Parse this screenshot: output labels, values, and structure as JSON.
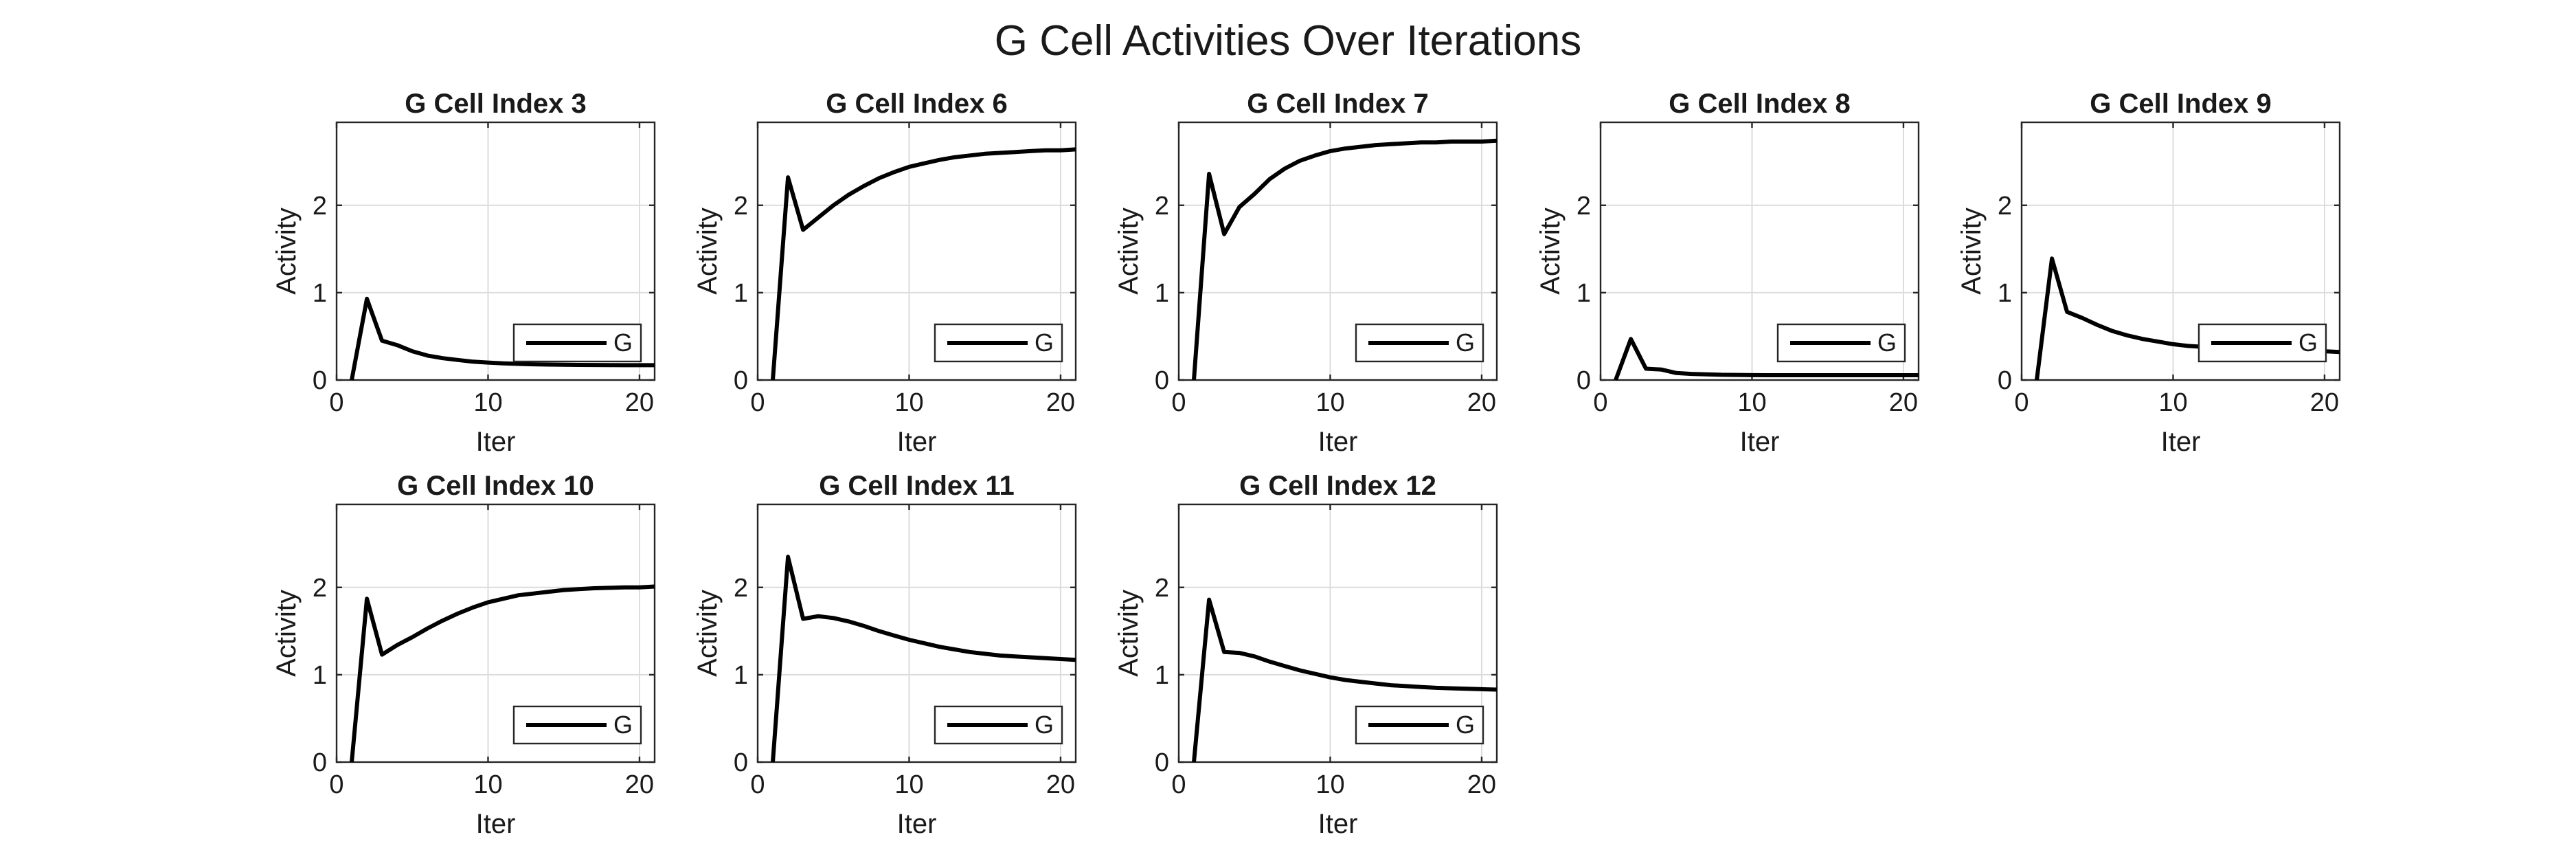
{
  "figure": {
    "title": "G Cell Activities Over Iterations"
  },
  "chart_data": [
    {
      "type": "line",
      "title": "G Cell Index 3",
      "xlabel": "Iter",
      "ylabel": "Activity",
      "xlim": [
        0,
        21
      ],
      "ylim": [
        0,
        2.95
      ],
      "xticks": [
        "0",
        "10",
        "20"
      ],
      "yticks": [
        "0",
        "1",
        "2"
      ],
      "grid": true,
      "legend": "bottom-right",
      "series": [
        {
          "name": "G",
          "x": [
            1,
            2,
            3,
            4,
            5,
            6,
            7,
            8,
            9,
            10,
            11,
            12,
            13,
            14,
            15,
            16,
            17,
            18,
            19,
            20,
            21
          ],
          "y": [
            0,
            0.93,
            0.45,
            0.4,
            0.33,
            0.28,
            0.25,
            0.23,
            0.21,
            0.2,
            0.19,
            0.185,
            0.18,
            0.177,
            0.175,
            0.173,
            0.172,
            0.171,
            0.17,
            0.17,
            0.17
          ]
        }
      ]
    },
    {
      "type": "line",
      "title": "G Cell Index 6",
      "xlabel": "Iter",
      "ylabel": "Activity",
      "xlim": [
        0,
        21
      ],
      "ylim": [
        0,
        2.95
      ],
      "xticks": [
        "0",
        "10",
        "20"
      ],
      "yticks": [
        "0",
        "1",
        "2"
      ],
      "grid": true,
      "legend": "bottom-right",
      "series": [
        {
          "name": "G",
          "x": [
            1,
            2,
            3,
            4,
            5,
            6,
            7,
            8,
            9,
            10,
            11,
            12,
            13,
            14,
            15,
            16,
            17,
            18,
            19,
            20,
            21
          ],
          "y": [
            0,
            2.32,
            1.72,
            1.86,
            2.0,
            2.12,
            2.22,
            2.31,
            2.38,
            2.44,
            2.48,
            2.52,
            2.55,
            2.57,
            2.59,
            2.6,
            2.61,
            2.62,
            2.63,
            2.63,
            2.64
          ]
        }
      ]
    },
    {
      "type": "line",
      "title": "G Cell Index 7",
      "xlabel": "Iter",
      "ylabel": "Activity",
      "xlim": [
        0,
        21
      ],
      "ylim": [
        0,
        2.95
      ],
      "xticks": [
        "0",
        "10",
        "20"
      ],
      "yticks": [
        "0",
        "1",
        "2"
      ],
      "grid": true,
      "legend": "bottom-right",
      "series": [
        {
          "name": "G",
          "x": [
            1,
            2,
            3,
            4,
            5,
            6,
            7,
            8,
            9,
            10,
            11,
            12,
            13,
            14,
            15,
            16,
            17,
            18,
            19,
            20,
            21
          ],
          "y": [
            0,
            2.36,
            1.67,
            1.98,
            2.13,
            2.3,
            2.42,
            2.51,
            2.57,
            2.62,
            2.65,
            2.67,
            2.69,
            2.7,
            2.71,
            2.72,
            2.72,
            2.73,
            2.73,
            2.73,
            2.74
          ]
        }
      ]
    },
    {
      "type": "line",
      "title": "G Cell Index 8",
      "xlabel": "Iter",
      "ylabel": "Activity",
      "xlim": [
        0,
        21
      ],
      "ylim": [
        0,
        2.95
      ],
      "xticks": [
        "0",
        "10",
        "20"
      ],
      "yticks": [
        "0",
        "1",
        "2"
      ],
      "grid": true,
      "legend": "bottom-right",
      "series": [
        {
          "name": "G",
          "x": [
            1,
            2,
            3,
            4,
            5,
            6,
            7,
            8,
            9,
            10,
            11,
            12,
            13,
            14,
            15,
            16,
            17,
            18,
            19,
            20,
            21
          ],
          "y": [
            0,
            0.47,
            0.13,
            0.12,
            0.08,
            0.07,
            0.065,
            0.06,
            0.058,
            0.056,
            0.055,
            0.055,
            0.055,
            0.055,
            0.055,
            0.055,
            0.055,
            0.055,
            0.055,
            0.055,
            0.055
          ]
        }
      ]
    },
    {
      "type": "line",
      "title": "G Cell Index 9",
      "xlabel": "Iter",
      "ylabel": "Activity",
      "xlim": [
        0,
        21
      ],
      "ylim": [
        0,
        2.95
      ],
      "xticks": [
        "0",
        "10",
        "20"
      ],
      "yticks": [
        "0",
        "1",
        "2"
      ],
      "grid": true,
      "legend": "bottom-right",
      "series": [
        {
          "name": "G",
          "x": [
            1,
            2,
            3,
            4,
            5,
            6,
            7,
            8,
            9,
            10,
            11,
            12,
            13,
            14,
            15,
            16,
            17,
            18,
            19,
            20,
            21
          ],
          "y": [
            0,
            1.39,
            0.78,
            0.71,
            0.63,
            0.56,
            0.51,
            0.47,
            0.44,
            0.41,
            0.39,
            0.38,
            0.37,
            0.36,
            0.35,
            0.34,
            0.34,
            0.33,
            0.33,
            0.33,
            0.32
          ]
        }
      ]
    },
    {
      "type": "line",
      "title": "G Cell Index 10",
      "xlabel": "Iter",
      "ylabel": "Activity",
      "xlim": [
        0,
        21
      ],
      "ylim": [
        0,
        2.95
      ],
      "xticks": [
        "0",
        "10",
        "20"
      ],
      "yticks": [
        "0",
        "1",
        "2"
      ],
      "grid": true,
      "legend": "bottom-right",
      "series": [
        {
          "name": "G",
          "x": [
            1,
            2,
            3,
            4,
            5,
            6,
            7,
            8,
            9,
            10,
            11,
            12,
            13,
            14,
            15,
            16,
            17,
            18,
            19,
            20,
            21
          ],
          "y": [
            0,
            1.87,
            1.23,
            1.34,
            1.43,
            1.53,
            1.62,
            1.7,
            1.77,
            1.83,
            1.87,
            1.91,
            1.93,
            1.95,
            1.97,
            1.98,
            1.99,
            1.995,
            2.0,
            2.0,
            2.01
          ]
        }
      ]
    },
    {
      "type": "line",
      "title": "G Cell Index 11",
      "xlabel": "Iter",
      "ylabel": "Activity",
      "xlim": [
        0,
        21
      ],
      "ylim": [
        0,
        2.95
      ],
      "xticks": [
        "0",
        "10",
        "20"
      ],
      "yticks": [
        "0",
        "1",
        "2"
      ],
      "grid": true,
      "legend": "bottom-right",
      "series": [
        {
          "name": "G",
          "x": [
            1,
            2,
            3,
            4,
            5,
            6,
            7,
            8,
            9,
            10,
            11,
            12,
            13,
            14,
            15,
            16,
            17,
            18,
            19,
            20,
            21
          ],
          "y": [
            0,
            2.35,
            1.64,
            1.67,
            1.65,
            1.61,
            1.56,
            1.5,
            1.45,
            1.4,
            1.36,
            1.32,
            1.29,
            1.26,
            1.24,
            1.22,
            1.21,
            1.2,
            1.19,
            1.18,
            1.17
          ]
        }
      ]
    },
    {
      "type": "line",
      "title": "G Cell Index 12",
      "xlabel": "Iter",
      "ylabel": "Activity",
      "xlim": [
        0,
        21
      ],
      "ylim": [
        0,
        2.95
      ],
      "xticks": [
        "0",
        "10",
        "20"
      ],
      "yticks": [
        "0",
        "1",
        "2"
      ],
      "grid": true,
      "legend": "bottom-right",
      "series": [
        {
          "name": "G",
          "x": [
            1,
            2,
            3,
            4,
            5,
            6,
            7,
            8,
            9,
            10,
            11,
            12,
            13,
            14,
            15,
            16,
            17,
            18,
            19,
            20,
            21
          ],
          "y": [
            0,
            1.86,
            1.26,
            1.25,
            1.21,
            1.15,
            1.1,
            1.05,
            1.01,
            0.97,
            0.94,
            0.92,
            0.9,
            0.88,
            0.87,
            0.86,
            0.85,
            0.845,
            0.84,
            0.835,
            0.83
          ]
        }
      ]
    }
  ]
}
